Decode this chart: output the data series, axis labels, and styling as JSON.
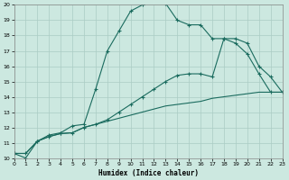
{
  "xlabel": "Humidex (Indice chaleur)",
  "xlim": [
    0,
    23
  ],
  "ylim": [
    10,
    20
  ],
  "yticks": [
    10,
    11,
    12,
    13,
    14,
    15,
    16,
    17,
    18,
    19,
    20
  ],
  "xticks": [
    0,
    1,
    2,
    3,
    4,
    5,
    6,
    7,
    8,
    9,
    10,
    11,
    12,
    13,
    14,
    15,
    16,
    17,
    18,
    19,
    20,
    21,
    22,
    23
  ],
  "bg_color": "#cce8e0",
  "line_color": "#1a6b5e",
  "grid_color": "#aaccc4",
  "line1_x": [
    0,
    1,
    2,
    3,
    4,
    5,
    6,
    7,
    8,
    9,
    10,
    11,
    12,
    13,
    14,
    15,
    16,
    17,
    18,
    19,
    20,
    21,
    22,
    23
  ],
  "line1_y": [
    10.3,
    10.0,
    11.1,
    11.5,
    11.65,
    12.1,
    12.2,
    14.5,
    17.0,
    18.3,
    19.6,
    20.0,
    20.2,
    20.1,
    19.0,
    18.7,
    18.7,
    17.8,
    17.8,
    17.5,
    16.8,
    15.5,
    14.3,
    14.3
  ],
  "line2_x": [
    0,
    1,
    2,
    3,
    4,
    5,
    6,
    7,
    8,
    9,
    10,
    11,
    12,
    13,
    14,
    15,
    16,
    17,
    18,
    19,
    20,
    21,
    22,
    23
  ],
  "line2_y": [
    10.3,
    10.3,
    11.1,
    11.4,
    11.6,
    11.65,
    12.0,
    12.2,
    12.5,
    13.0,
    13.5,
    14.0,
    14.5,
    15.0,
    15.4,
    15.5,
    15.5,
    15.3,
    17.8,
    17.8,
    17.5,
    16.0,
    15.3,
    14.3
  ],
  "line3_x": [
    0,
    1,
    2,
    3,
    4,
    5,
    6,
    7,
    8,
    9,
    10,
    11,
    12,
    13,
    14,
    15,
    16,
    17,
    18,
    19,
    20,
    21,
    22,
    23
  ],
  "line3_y": [
    10.3,
    10.3,
    11.1,
    11.4,
    11.6,
    11.65,
    12.0,
    12.2,
    12.4,
    12.6,
    12.8,
    13.0,
    13.2,
    13.4,
    13.5,
    13.6,
    13.7,
    13.9,
    14.0,
    14.1,
    14.2,
    14.3,
    14.3,
    14.3
  ]
}
